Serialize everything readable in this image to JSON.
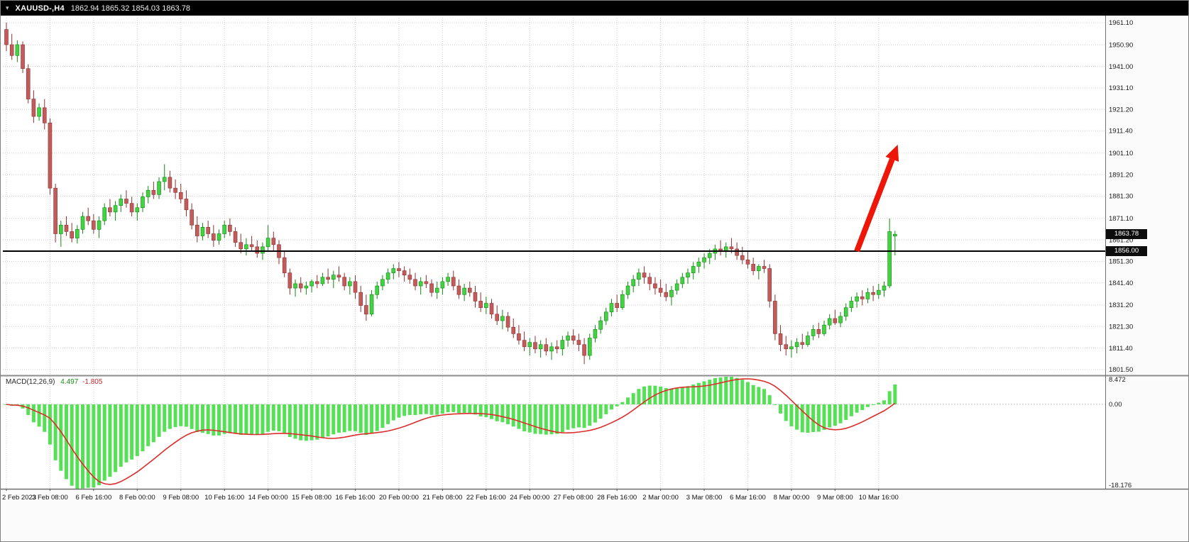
{
  "header": {
    "symbol": "XAUUSD-,H4",
    "ohlc": "1862.94 1865.32 1854.03 1863.78"
  },
  "chart_data": {
    "type": "candlestick",
    "symbol": "XAUUSD",
    "timeframe": "H4",
    "title": "XAUUSD-,H4",
    "price_axis_range": [
      1799.2,
      1963.4
    ],
    "grid": true,
    "label_every_n_bars": 8,
    "price_axis_labels": [
      "1961.10",
      "1950.90",
      "1941.00",
      "1931.10",
      "1921.20",
      "1911.40",
      "1901.10",
      "1891.20",
      "1881.30",
      "1871.10",
      "1861.20",
      "1851.30",
      "1841.40",
      "1831.20",
      "1821.30",
      "1811.40",
      "1801.50"
    ],
    "time_axis_labels": [
      "2 Feb 2023",
      "3 Feb 08:00",
      "6 Feb 16:00",
      "8 Feb 00:00",
      "9 Feb 08:00",
      "10 Feb 16:00",
      "14 Feb 00:00",
      "15 Feb 08:00",
      "16 Feb 16:00",
      "20 Feb 00:00",
      "21 Feb 08:00",
      "22 Feb 16:00",
      "24 Feb 00:00",
      "27 Feb 08:00",
      "28 Feb 16:00",
      "2 Mar 00:00",
      "3 Mar 08:00",
      "6 Mar 16:00",
      "8 Mar 00:00",
      "9 Mar 08:00",
      "10 Mar 16:00"
    ],
    "hline_price": 1856.0,
    "current_price": 1863.78,
    "price_line_badges": [
      "1863.78",
      "1856.00"
    ],
    "candles_ohlc": [
      [
        1958,
        1961.1,
        1948,
        1951
      ],
      [
        1951,
        1956,
        1944,
        1946
      ],
      [
        1946,
        1953,
        1943,
        1951
      ],
      [
        1951,
        1952.5,
        1938,
        1940
      ],
      [
        1940,
        1942,
        1924,
        1926
      ],
      [
        1926,
        1930,
        1915,
        1918
      ],
      [
        1918,
        1924,
        1916,
        1922
      ],
      [
        1922,
        1926,
        1912,
        1915
      ],
      [
        1915,
        1917,
        1882,
        1885
      ],
      [
        1885,
        1887,
        1860,
        1864
      ],
      [
        1864,
        1870,
        1858,
        1868
      ],
      [
        1868,
        1872,
        1863,
        1865
      ],
      [
        1865,
        1869,
        1860,
        1862
      ],
      [
        1862,
        1868,
        1859.5,
        1866
      ],
      [
        1866,
        1874,
        1864,
        1872
      ],
      [
        1872,
        1876,
        1868,
        1870
      ],
      [
        1870,
        1873,
        1864,
        1866
      ],
      [
        1866,
        1872,
        1862,
        1870
      ],
      [
        1870,
        1878,
        1868,
        1876
      ],
      [
        1876,
        1880,
        1872,
        1874
      ],
      [
        1874,
        1879,
        1870,
        1877
      ],
      [
        1877,
        1882,
        1874,
        1880
      ],
      [
        1880,
        1884,
        1876,
        1878
      ],
      [
        1878,
        1881,
        1872,
        1874
      ],
      [
        1874,
        1878,
        1870,
        1876
      ],
      [
        1876,
        1883,
        1874,
        1881
      ],
      [
        1881,
        1886,
        1878,
        1884
      ],
      [
        1884,
        1888,
        1880,
        1882
      ],
      [
        1882,
        1890,
        1880,
        1888
      ],
      [
        1888,
        1896,
        1884,
        1890
      ],
      [
        1890,
        1893,
        1883,
        1885
      ],
      [
        1885,
        1889,
        1880,
        1883
      ],
      [
        1883,
        1887,
        1878,
        1880
      ],
      [
        1880,
        1884,
        1872,
        1875
      ],
      [
        1875,
        1878,
        1866,
        1868
      ],
      [
        1868,
        1872,
        1860,
        1863
      ],
      [
        1863,
        1869,
        1861,
        1867
      ],
      [
        1867,
        1870,
        1862,
        1864
      ],
      [
        1864,
        1868,
        1858,
        1861
      ],
      [
        1861,
        1866,
        1859,
        1864
      ],
      [
        1864,
        1870,
        1862,
        1868
      ],
      [
        1868,
        1871,
        1863,
        1865
      ],
      [
        1865,
        1867,
        1858,
        1860
      ],
      [
        1860,
        1864,
        1855,
        1857
      ],
      [
        1857,
        1862,
        1854,
        1859
      ],
      [
        1859,
        1863,
        1856,
        1858
      ],
      [
        1858,
        1861,
        1853,
        1855
      ],
      [
        1855,
        1860,
        1852,
        1858
      ],
      [
        1858,
        1868,
        1856,
        1862
      ],
      [
        1862,
        1865,
        1856,
        1859
      ],
      [
        1859,
        1861,
        1850,
        1853
      ],
      [
        1853,
        1856,
        1844,
        1846
      ],
      [
        1846,
        1848,
        1836,
        1839
      ],
      [
        1839,
        1843,
        1835,
        1841
      ],
      [
        1841,
        1844,
        1837,
        1839
      ],
      [
        1839,
        1842,
        1836,
        1840
      ],
      [
        1840,
        1843,
        1837,
        1842
      ],
      [
        1842,
        1845,
        1839,
        1841
      ],
      [
        1841,
        1846,
        1840,
        1844
      ],
      [
        1844,
        1848,
        1841,
        1843
      ],
      [
        1843,
        1847,
        1839,
        1845
      ],
      [
        1845,
        1849,
        1842,
        1844
      ],
      [
        1844,
        1846,
        1838,
        1840
      ],
      [
        1840,
        1844,
        1836,
        1842
      ],
      [
        1842,
        1845,
        1834,
        1837
      ],
      [
        1837,
        1840,
        1828,
        1831
      ],
      [
        1831,
        1836,
        1824,
        1827
      ],
      [
        1827,
        1838,
        1826,
        1836
      ],
      [
        1836,
        1842,
        1834,
        1840
      ],
      [
        1840,
        1845,
        1838,
        1843
      ],
      [
        1843,
        1848,
        1841,
        1846
      ],
      [
        1846,
        1850,
        1843,
        1848
      ],
      [
        1848,
        1851,
        1844,
        1847
      ],
      [
        1847,
        1849,
        1842,
        1845
      ],
      [
        1845,
        1848,
        1841,
        1843
      ],
      [
        1843,
        1846,
        1838,
        1840
      ],
      [
        1840,
        1844,
        1836,
        1842
      ],
      [
        1842,
        1845,
        1839,
        1841
      ],
      [
        1841,
        1843,
        1835,
        1837
      ],
      [
        1837,
        1842,
        1834,
        1839
      ],
      [
        1839,
        1844,
        1836,
        1842
      ],
      [
        1842,
        1846,
        1840,
        1844
      ],
      [
        1844,
        1847,
        1838,
        1840
      ],
      [
        1840,
        1843,
        1834,
        1836
      ],
      [
        1836,
        1841,
        1833,
        1839
      ],
      [
        1839,
        1842,
        1835,
        1837
      ],
      [
        1837,
        1840,
        1830,
        1833
      ],
      [
        1833,
        1837,
        1828,
        1830
      ],
      [
        1830,
        1835,
        1827,
        1832
      ],
      [
        1832,
        1834,
        1825,
        1827
      ],
      [
        1827,
        1831,
        1822,
        1824
      ],
      [
        1824,
        1829,
        1820,
        1826
      ],
      [
        1826,
        1828,
        1819,
        1821
      ],
      [
        1821,
        1825,
        1816,
        1818
      ],
      [
        1818,
        1822,
        1813,
        1815
      ],
      [
        1815,
        1819,
        1810,
        1812
      ],
      [
        1812,
        1816,
        1808,
        1814
      ],
      [
        1814,
        1817,
        1809,
        1811
      ],
      [
        1811,
        1815,
        1807,
        1813
      ],
      [
        1813,
        1816,
        1808,
        1810
      ],
      [
        1810,
        1814,
        1806,
        1812
      ],
      [
        1812,
        1815,
        1809,
        1811
      ],
      [
        1811,
        1817,
        1808,
        1815
      ],
      [
        1815,
        1819,
        1812,
        1817
      ],
      [
        1817,
        1820,
        1813,
        1815
      ],
      [
        1815,
        1818,
        1810,
        1813
      ],
      [
        1813,
        1816,
        1804,
        1808
      ],
      [
        1808,
        1818,
        1806,
        1816
      ],
      [
        1816,
        1822,
        1814,
        1820
      ],
      [
        1820,
        1826,
        1818,
        1824
      ],
      [
        1824,
        1830,
        1822,
        1828
      ],
      [
        1828,
        1834,
        1826,
        1832
      ],
      [
        1832,
        1836,
        1828,
        1830
      ],
      [
        1830,
        1838,
        1829,
        1836
      ],
      [
        1836,
        1842,
        1834,
        1840
      ],
      [
        1840,
        1845,
        1837,
        1843
      ],
      [
        1843,
        1848,
        1840,
        1846
      ],
      [
        1846,
        1849,
        1841,
        1844
      ],
      [
        1844,
        1846,
        1838,
        1841
      ],
      [
        1841,
        1844,
        1836,
        1839
      ],
      [
        1839,
        1843,
        1835,
        1837
      ],
      [
        1837,
        1841,
        1833,
        1835
      ],
      [
        1835,
        1840,
        1831,
        1838
      ],
      [
        1838,
        1843,
        1836,
        1841
      ],
      [
        1841,
        1846,
        1839,
        1844
      ],
      [
        1844,
        1848,
        1841,
        1846
      ],
      [
        1846,
        1851,
        1843,
        1849
      ],
      [
        1849,
        1853,
        1846,
        1851
      ],
      [
        1851,
        1855,
        1848,
        1853
      ],
      [
        1853,
        1857,
        1850,
        1855
      ],
      [
        1855,
        1859,
        1852,
        1857
      ],
      [
        1857,
        1861,
        1854,
        1856
      ],
      [
        1856,
        1860,
        1853,
        1858
      ],
      [
        1858,
        1862,
        1855,
        1857
      ],
      [
        1857,
        1860,
        1852,
        1854
      ],
      [
        1854,
        1858,
        1850,
        1852
      ],
      [
        1852,
        1856,
        1848,
        1850
      ],
      [
        1850,
        1853,
        1845,
        1847
      ],
      [
        1847,
        1850,
        1843,
        1849
      ],
      [
        1849,
        1852,
        1846,
        1848
      ],
      [
        1848,
        1850,
        1830,
        1833
      ],
      [
        1833,
        1836,
        1815,
        1818
      ],
      [
        1818,
        1822,
        1810,
        1813
      ],
      [
        1813,
        1817,
        1808,
        1811
      ],
      [
        1811,
        1815,
        1807,
        1812
      ],
      [
        1812,
        1816,
        1809,
        1814
      ],
      [
        1814,
        1818,
        1811,
        1813
      ],
      [
        1813,
        1819,
        1812,
        1817
      ],
      [
        1817,
        1822,
        1815,
        1820
      ],
      [
        1820,
        1823,
        1816,
        1818
      ],
      [
        1818,
        1824,
        1817,
        1822
      ],
      [
        1822,
        1827,
        1820,
        1825
      ],
      [
        1825,
        1829,
        1822,
        1823
      ],
      [
        1823,
        1828,
        1821,
        1826
      ],
      [
        1826,
        1832,
        1824,
        1830
      ],
      [
        1830,
        1835,
        1828,
        1833
      ],
      [
        1833,
        1837,
        1830,
        1835
      ],
      [
        1835,
        1838,
        1831,
        1834
      ],
      [
        1834,
        1839,
        1832,
        1837
      ],
      [
        1837,
        1840,
        1833,
        1836
      ],
      [
        1836,
        1841,
        1834,
        1838
      ],
      [
        1838,
        1842,
        1835,
        1840
      ],
      [
        1840,
        1871,
        1839,
        1865
      ],
      [
        1862.94,
        1865.32,
        1854.03,
        1863.78
      ]
    ],
    "macd": {
      "label": "MACD(12,26,9)",
      "main_value": "4.497",
      "signal_value": "-1.805",
      "params": [
        12,
        26,
        9
      ],
      "axis_max_label": "8.472",
      "axis_zero_label": "0.00",
      "axis_min_label": "-18.176"
    },
    "annotations": [
      {
        "type": "arrow-up",
        "color": "#ee1608",
        "from_bar": 156,
        "from_price": 1856,
        "to_bar": 163.5,
        "to_price": 1905
      }
    ],
    "colors": {
      "bull": "#44d244",
      "bull_stroke": "#128a12",
      "bear": "#c25b5b",
      "bear_stroke": "#8f3232",
      "grid": "#cccccc",
      "hline": "#000000",
      "macd_bar": "#55e055",
      "macd_signal": "#dd2c2c",
      "background": "#ffffff",
      "axis_text": "#1a1a1a"
    }
  }
}
